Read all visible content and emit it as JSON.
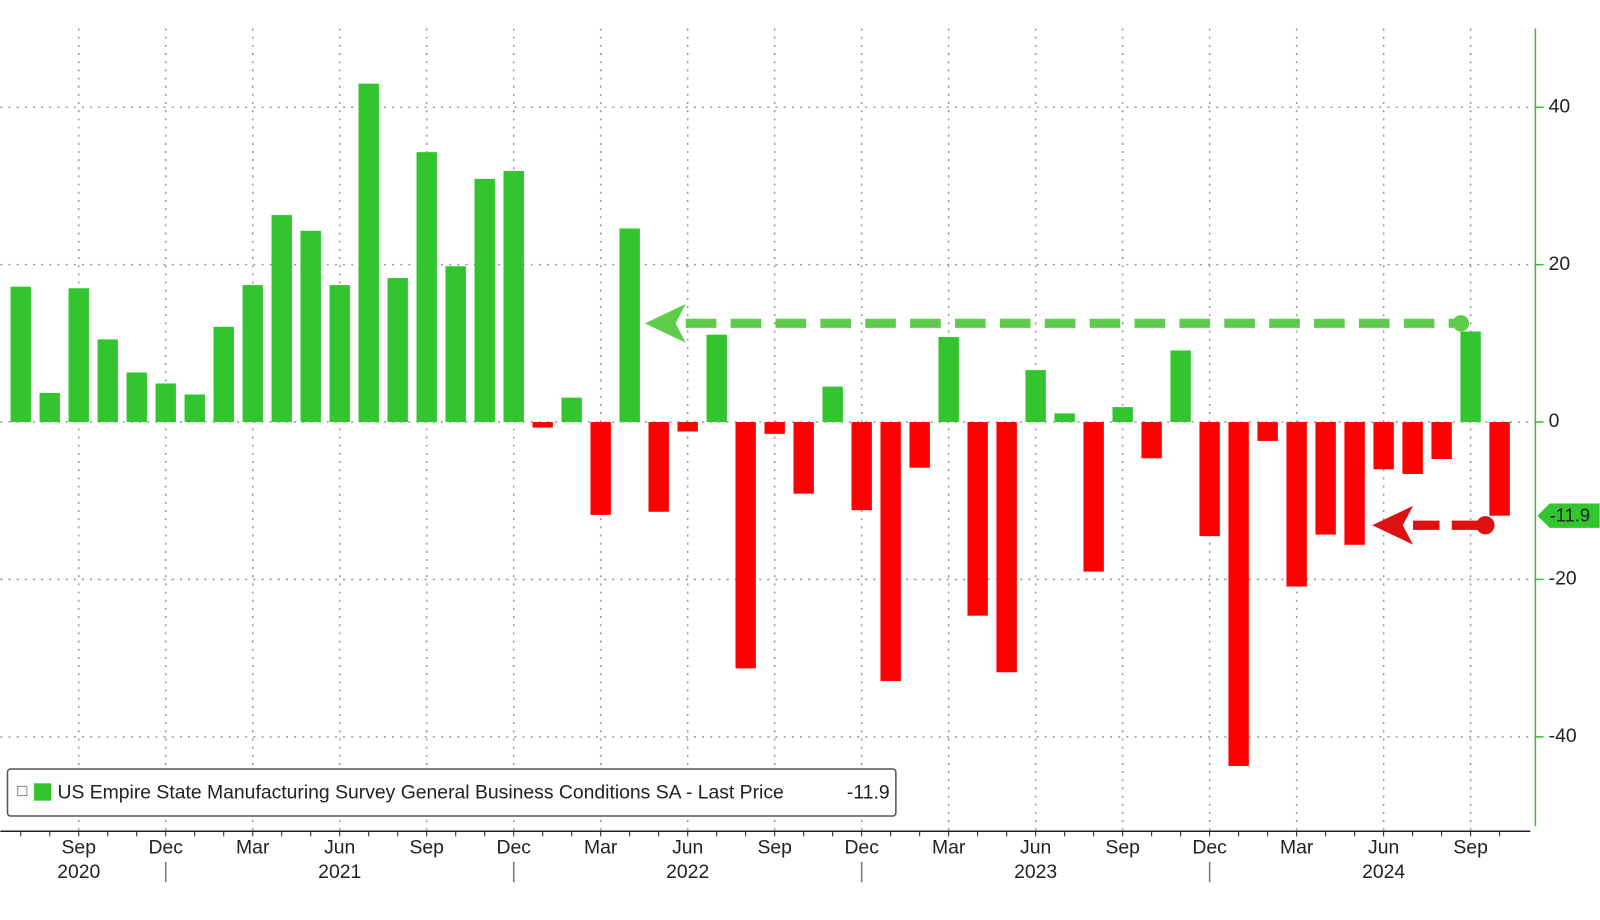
{
  "chart_data": {
    "type": "bar",
    "series": [
      {
        "name": "US Empire State Manufacturing Survey General Business Conditions SA - Last Price",
        "values": [
          17.2,
          3.7,
          17.0,
          10.5,
          6.3,
          4.9,
          3.5,
          12.1,
          17.4,
          26.3,
          24.3,
          17.4,
          43.0,
          18.3,
          34.3,
          19.8,
          30.9,
          31.9,
          -0.7,
          3.1,
          -11.8,
          24.6,
          -11.4,
          -1.2,
          11.1,
          -31.3,
          -1.5,
          -9.1,
          4.5,
          -11.2,
          -32.9,
          -5.8,
          10.8,
          -24.6,
          -31.8,
          6.6,
          1.1,
          -19.0,
          1.9,
          -4.6,
          9.1,
          -14.5,
          -43.7,
          -2.4,
          -20.9,
          -14.3,
          -15.6,
          -6.0,
          -6.6,
          -4.7,
          11.5,
          -11.9
        ]
      }
    ],
    "categories": [
      null,
      null,
      "Sep",
      null,
      null,
      "Dec",
      null,
      null,
      "Mar",
      null,
      null,
      "Jun",
      null,
      null,
      "Sep",
      null,
      null,
      "Dec",
      null,
      null,
      "Mar",
      null,
      null,
      "Jun",
      null,
      null,
      "Sep",
      null,
      null,
      "Dec",
      null,
      null,
      "Mar",
      null,
      null,
      "Jun",
      null,
      null,
      "Sep",
      null,
      null,
      "Dec",
      null,
      null,
      "Mar",
      null,
      null,
      "Jun",
      null,
      null,
      "Sep",
      null
    ],
    "category_years": [
      null,
      null,
      "2020",
      null,
      null,
      null,
      null,
      null,
      null,
      null,
      null,
      "2021",
      null,
      null,
      null,
      null,
      null,
      null,
      null,
      null,
      null,
      null,
      null,
      "2022",
      null,
      null,
      null,
      null,
      null,
      null,
      null,
      null,
      null,
      null,
      null,
      "2023",
      null,
      null,
      null,
      null,
      null,
      null,
      null,
      null,
      null,
      null,
      null,
      "2024",
      null,
      null,
      null,
      null
    ],
    "positive_color": "#33c52f",
    "negative_color": "#ff0000",
    "ylim": [
      -52,
      50
    ],
    "yticks": [
      -40,
      -20,
      0,
      20,
      40
    ],
    "grid": true
  }
}
